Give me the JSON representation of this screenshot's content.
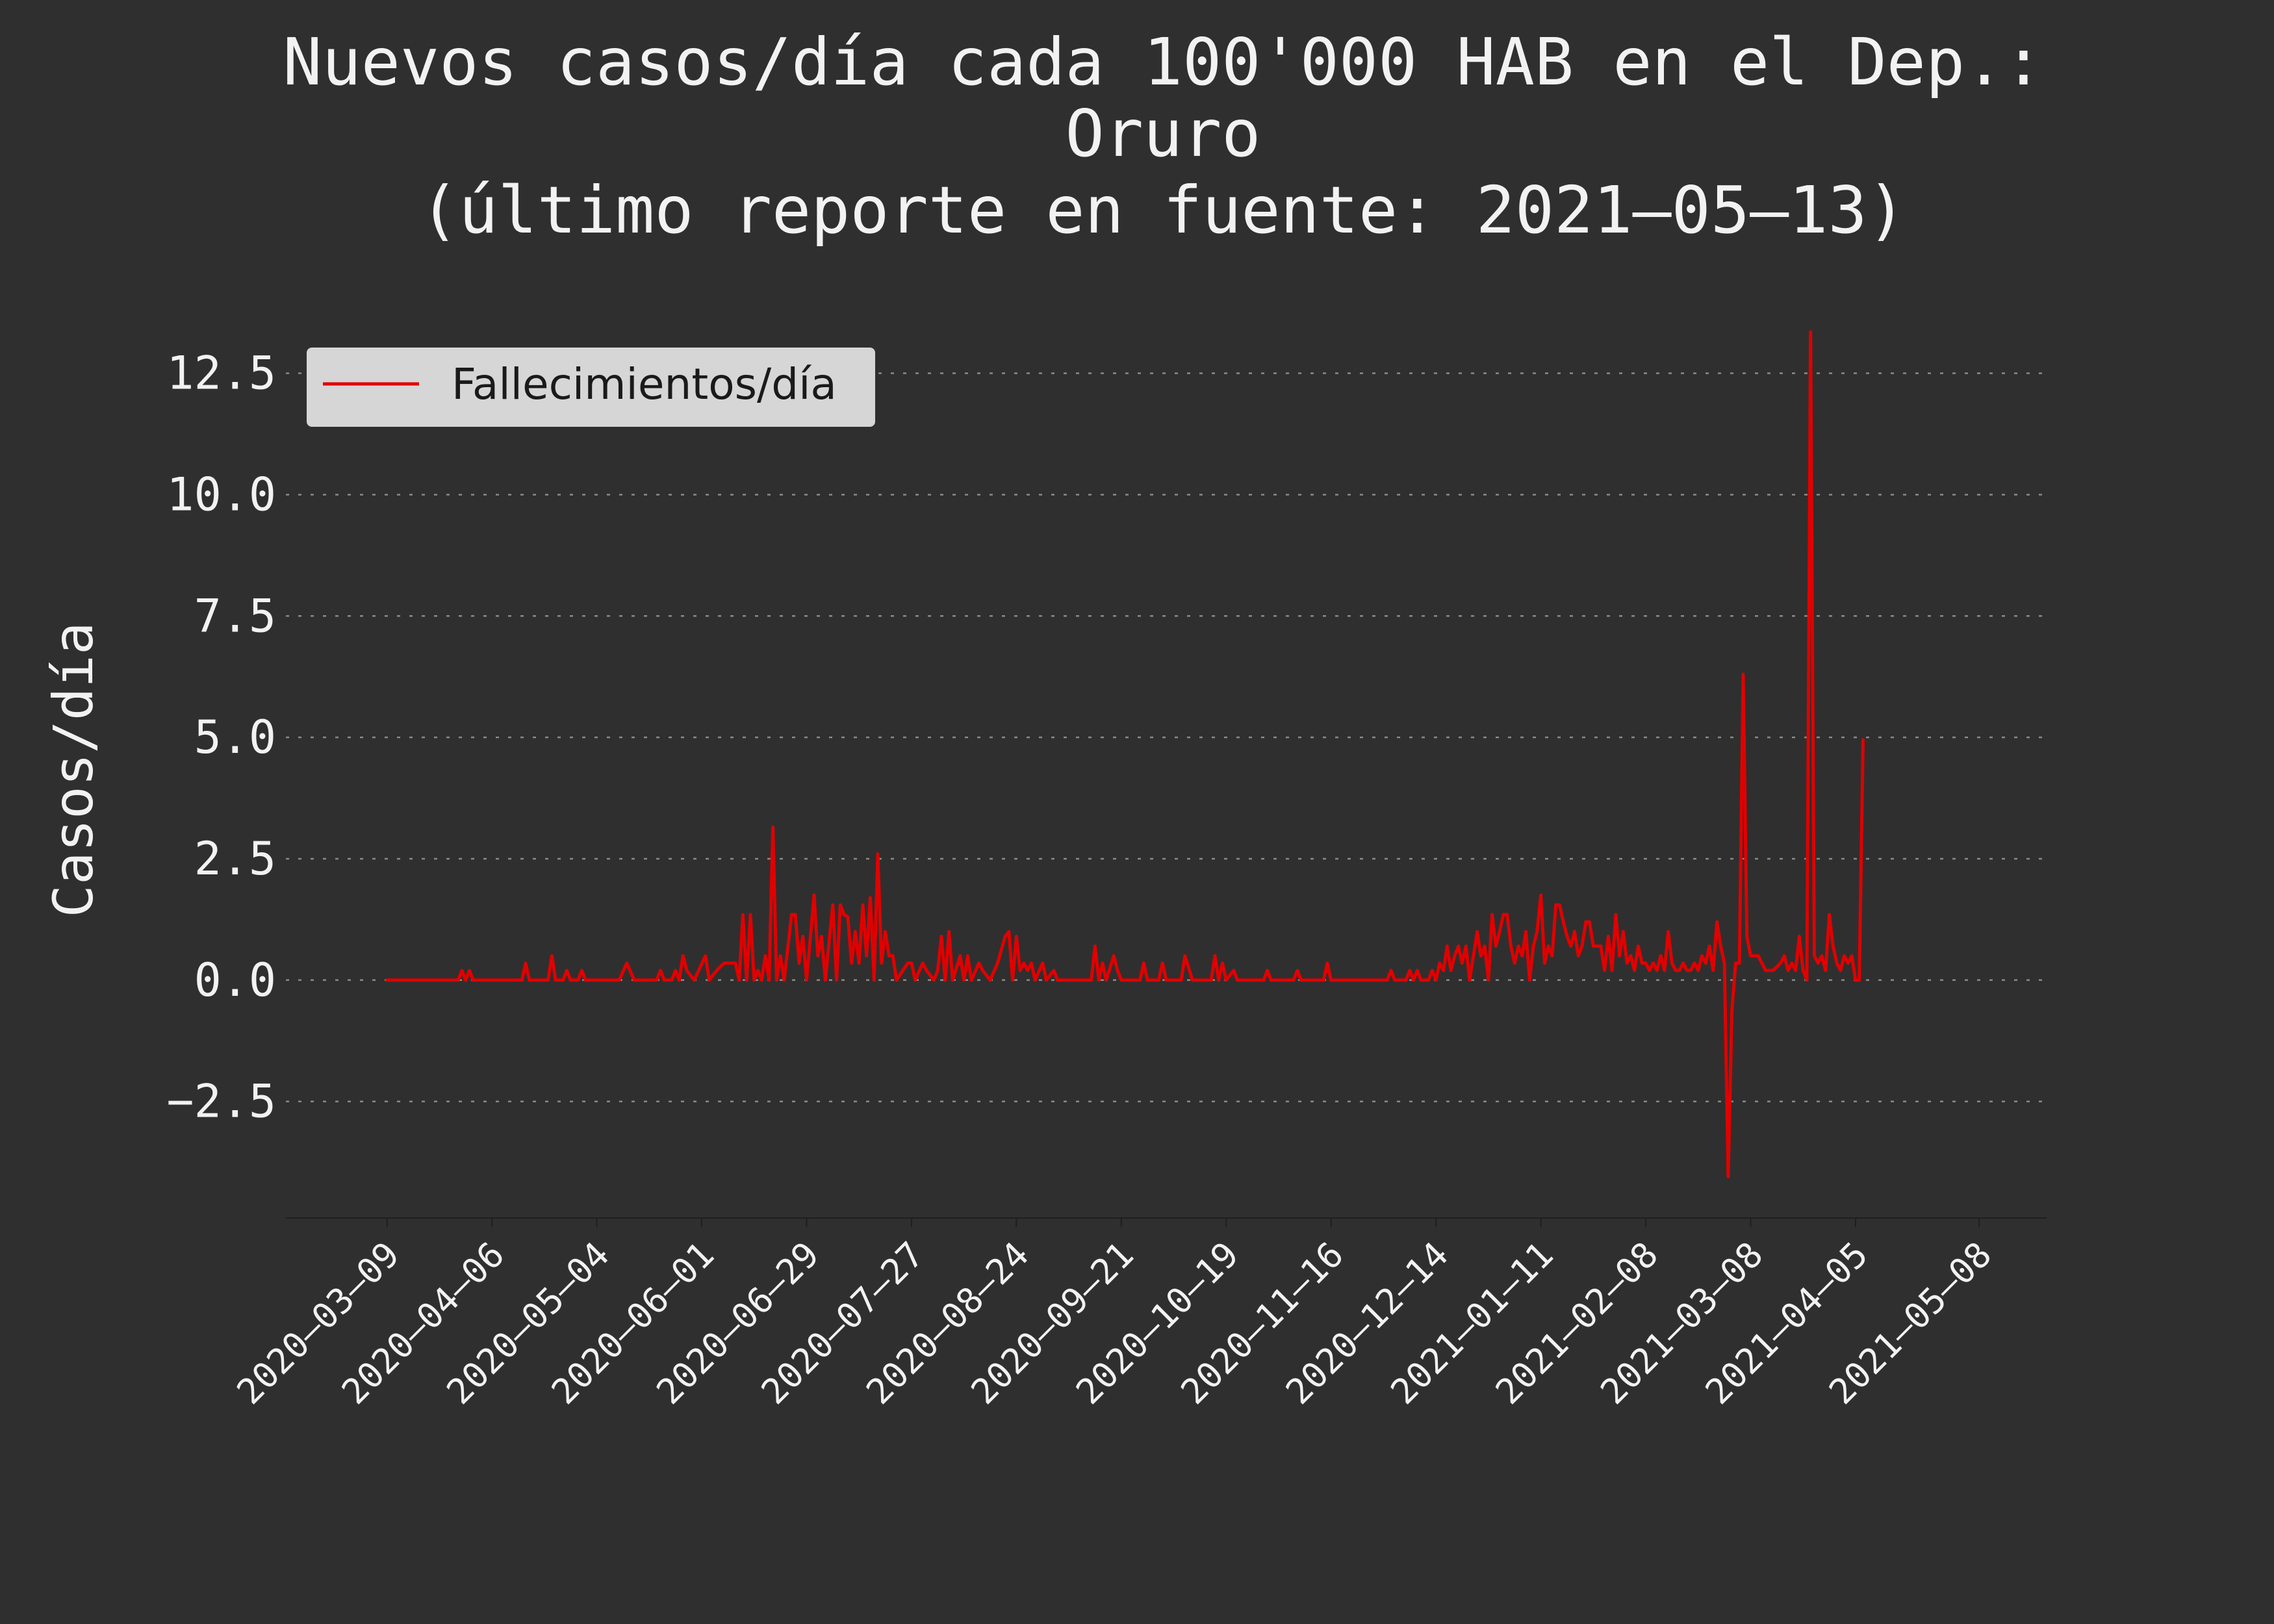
{
  "chart_data": {
    "type": "line",
    "title_lines": [
      "Nuevos casos/día cada 100'000 HAB en el Dep.:",
      "Oruro",
      "(último reporte en fuente: 2021–05–13)"
    ],
    "xlabel": "",
    "ylabel": "Casos/día",
    "ylim": [
      -4.9,
      13.9
    ],
    "yticks": [
      -2.5,
      0.0,
      2.5,
      5.0,
      7.5,
      10.0,
      12.5
    ],
    "ytick_labels": [
      "−2.5",
      "0.0",
      "2.5",
      "5.0",
      "7.5",
      "10.0",
      "12.5"
    ],
    "xlim": [
      "2020-02-11",
      "2021-05-26"
    ],
    "xticks": [
      "2020-03-09",
      "2020-04-06",
      "2020-05-04",
      "2020-06-01",
      "2020-06-29",
      "2020-07-27",
      "2020-08-24",
      "2020-09-21",
      "2020-10-19",
      "2020-11-16",
      "2020-12-14",
      "2021-01-11",
      "2021-02-08",
      "2021-03-08",
      "2021-04-05",
      "2021-05-08"
    ],
    "xtick_labels": [
      "2020–03–09",
      "2020–04–06",
      "2020–05–04",
      "2020–06–01",
      "2020–06–29",
      "2020–07–27",
      "2020–08–24",
      "2020–09–21",
      "2020–10–19",
      "2020–11–16",
      "2020–12–14",
      "2021–01–11",
      "2021–02–08",
      "2021–03–08",
      "2021–04–05",
      "2021–05–08"
    ],
    "grid": "horizontal dotted",
    "legend_position": "top-left",
    "line_color": "#e00000",
    "background_color": "#2f2f2f",
    "series": [
      {
        "name": "Fallecimientos/día",
        "points": [
          [
            "2020-03-09",
            0
          ],
          [
            "2020-03-28",
            0
          ],
          [
            "2020-03-29",
            0.2
          ],
          [
            "2020-03-30",
            0
          ],
          [
            "2020-03-31",
            0.2
          ],
          [
            "2020-04-01",
            0
          ],
          [
            "2020-04-14",
            0
          ],
          [
            "2020-04-15",
            0.35
          ],
          [
            "2020-04-16",
            0
          ],
          [
            "2020-04-21",
            0
          ],
          [
            "2020-04-22",
            0.5
          ],
          [
            "2020-04-23",
            0
          ],
          [
            "2020-04-25",
            0
          ],
          [
            "2020-04-26",
            0.2
          ],
          [
            "2020-04-27",
            0
          ],
          [
            "2020-04-29",
            0
          ],
          [
            "2020-04-30",
            0.2
          ],
          [
            "2020-05-01",
            0
          ],
          [
            "2020-05-10",
            0
          ],
          [
            "2020-05-12",
            0.35
          ],
          [
            "2020-05-14",
            0
          ],
          [
            "2020-05-20",
            0
          ],
          [
            "2020-05-21",
            0.2
          ],
          [
            "2020-05-22",
            0
          ],
          [
            "2020-05-24",
            0
          ],
          [
            "2020-05-25",
            0.2
          ],
          [
            "2020-05-26",
            0
          ],
          [
            "2020-05-27",
            0.5
          ],
          [
            "2020-05-28",
            0.2
          ],
          [
            "2020-05-30",
            0
          ],
          [
            "2020-06-02",
            0.5
          ],
          [
            "2020-06-03",
            0
          ],
          [
            "2020-06-05",
            0.2
          ],
          [
            "2020-06-07",
            0.35
          ],
          [
            "2020-06-08",
            0.35
          ],
          [
            "2020-06-10",
            0.35
          ],
          [
            "2020-06-11",
            0
          ],
          [
            "2020-06-12",
            1.35
          ],
          [
            "2020-06-13",
            0
          ],
          [
            "2020-06-14",
            1.35
          ],
          [
            "2020-06-15",
            0
          ],
          [
            "2020-06-16",
            0.2
          ],
          [
            "2020-06-17",
            0
          ],
          [
            "2020-06-18",
            0.5
          ],
          [
            "2020-06-19",
            0
          ],
          [
            "2020-06-20",
            3.15
          ],
          [
            "2020-06-21",
            0
          ],
          [
            "2020-06-22",
            0.5
          ],
          [
            "2020-06-23",
            0
          ],
          [
            "2020-06-25",
            1.35
          ],
          [
            "2020-06-26",
            1.35
          ],
          [
            "2020-06-27",
            0.35
          ],
          [
            "2020-06-28",
            0.9
          ],
          [
            "2020-06-29",
            0
          ],
          [
            "2020-07-01",
            1.75
          ],
          [
            "2020-07-02",
            0.5
          ],
          [
            "2020-07-03",
            0.9
          ],
          [
            "2020-07-04",
            0
          ],
          [
            "2020-07-06",
            1.55
          ],
          [
            "2020-07-07",
            0
          ],
          [
            "2020-07-08",
            1.55
          ],
          [
            "2020-07-09",
            1.35
          ],
          [
            "2020-07-10",
            1.3
          ],
          [
            "2020-07-11",
            0.35
          ],
          [
            "2020-07-12",
            1.0
          ],
          [
            "2020-07-13",
            0.35
          ],
          [
            "2020-07-14",
            1.55
          ],
          [
            "2020-07-15",
            0.5
          ],
          [
            "2020-07-16",
            1.7
          ],
          [
            "2020-07-17",
            0
          ],
          [
            "2020-07-18",
            2.6
          ],
          [
            "2020-07-19",
            0.35
          ],
          [
            "2020-07-20",
            1.0
          ],
          [
            "2020-07-21",
            0.5
          ],
          [
            "2020-07-22",
            0.5
          ],
          [
            "2020-07-23",
            0
          ],
          [
            "2020-07-26",
            0.35
          ],
          [
            "2020-07-27",
            0.35
          ],
          [
            "2020-07-28",
            0
          ],
          [
            "2020-07-30",
            0.35
          ],
          [
            "2020-07-31",
            0.2
          ],
          [
            "2020-08-02",
            0
          ],
          [
            "2020-08-03",
            0.2
          ],
          [
            "2020-08-04",
            0.9
          ],
          [
            "2020-08-05",
            0
          ],
          [
            "2020-08-06",
            1.0
          ],
          [
            "2020-08-07",
            0
          ],
          [
            "2020-08-09",
            0.5
          ],
          [
            "2020-08-10",
            0
          ],
          [
            "2020-08-11",
            0.5
          ],
          [
            "2020-08-12",
            0
          ],
          [
            "2020-08-14",
            0.35
          ],
          [
            "2020-08-15",
            0.2
          ],
          [
            "2020-08-17",
            0
          ],
          [
            "2020-08-19",
            0.35
          ],
          [
            "2020-08-21",
            0.9
          ],
          [
            "2020-08-22",
            1.0
          ],
          [
            "2020-08-23",
            0
          ],
          [
            "2020-08-24",
            0.9
          ],
          [
            "2020-08-25",
            0.2
          ],
          [
            "2020-08-26",
            0.35
          ],
          [
            "2020-08-27",
            0.2
          ],
          [
            "2020-08-28",
            0.35
          ],
          [
            "2020-08-29",
            0
          ],
          [
            "2020-08-31",
            0.35
          ],
          [
            "2020-09-01",
            0
          ],
          [
            "2020-09-03",
            0.2
          ],
          [
            "2020-09-04",
            0
          ],
          [
            "2020-09-13",
            0
          ],
          [
            "2020-09-14",
            0.7
          ],
          [
            "2020-09-15",
            0
          ],
          [
            "2020-09-16",
            0.35
          ],
          [
            "2020-09-17",
            0
          ],
          [
            "2020-09-19",
            0.5
          ],
          [
            "2020-09-20",
            0.2
          ],
          [
            "2020-09-21",
            0
          ],
          [
            "2020-09-26",
            0
          ],
          [
            "2020-09-27",
            0.35
          ],
          [
            "2020-09-28",
            0
          ],
          [
            "2020-10-01",
            0
          ],
          [
            "2020-10-02",
            0.35
          ],
          [
            "2020-10-03",
            0
          ],
          [
            "2020-10-07",
            0
          ],
          [
            "2020-10-08",
            0.5
          ],
          [
            "2020-10-10",
            0
          ],
          [
            "2020-10-15",
            0
          ],
          [
            "2020-10-16",
            0.5
          ],
          [
            "2020-10-17",
            0
          ],
          [
            "2020-10-18",
            0.35
          ],
          [
            "2020-10-19",
            0
          ],
          [
            "2020-10-21",
            0.2
          ],
          [
            "2020-10-22",
            0
          ],
          [
            "2020-10-29",
            0
          ],
          [
            "2020-10-30",
            0.2
          ],
          [
            "2020-10-31",
            0
          ],
          [
            "2020-11-06",
            0
          ],
          [
            "2020-11-07",
            0.2
          ],
          [
            "2020-11-08",
            0
          ],
          [
            "2020-11-14",
            0
          ],
          [
            "2020-11-15",
            0.35
          ],
          [
            "2020-11-16",
            0
          ],
          [
            "2020-12-01",
            0
          ],
          [
            "2020-12-02",
            0.2
          ],
          [
            "2020-12-03",
            0
          ],
          [
            "2020-12-06",
            0
          ],
          [
            "2020-12-07",
            0.2
          ],
          [
            "2020-12-08",
            0
          ],
          [
            "2020-12-09",
            0.2
          ],
          [
            "2020-12-10",
            0
          ],
          [
            "2020-12-12",
            0
          ],
          [
            "2020-12-13",
            0.2
          ],
          [
            "2020-12-14",
            0
          ],
          [
            "2020-12-15",
            0.35
          ],
          [
            "2020-12-16",
            0.2
          ],
          [
            "2020-12-17",
            0.7
          ],
          [
            "2020-12-18",
            0.2
          ],
          [
            "2020-12-19",
            0.5
          ],
          [
            "2020-12-20",
            0.7
          ],
          [
            "2020-12-21",
            0.35
          ],
          [
            "2020-12-22",
            0.7
          ],
          [
            "2020-12-23",
            0
          ],
          [
            "2020-12-24",
            0.5
          ],
          [
            "2020-12-25",
            1.0
          ],
          [
            "2020-12-26",
            0.5
          ],
          [
            "2020-12-27",
            0.7
          ],
          [
            "2020-12-28",
            0
          ],
          [
            "2020-12-29",
            1.35
          ],
          [
            "2020-12-30",
            0.7
          ],
          [
            "2020-12-31",
            1.0
          ],
          [
            "2021-01-01",
            1.35
          ],
          [
            "2021-01-02",
            1.35
          ],
          [
            "2021-01-03",
            0.7
          ],
          [
            "2021-01-04",
            0.35
          ],
          [
            "2021-01-05",
            0.7
          ],
          [
            "2021-01-06",
            0.5
          ],
          [
            "2021-01-07",
            1.0
          ],
          [
            "2021-01-08",
            0
          ],
          [
            "2021-01-09",
            0.7
          ],
          [
            "2021-01-10",
            1.0
          ],
          [
            "2021-01-11",
            1.75
          ],
          [
            "2021-01-12",
            0.35
          ],
          [
            "2021-01-13",
            0.7
          ],
          [
            "2021-01-14",
            0.5
          ],
          [
            "2021-01-15",
            1.55
          ],
          [
            "2021-01-16",
            1.55
          ],
          [
            "2021-01-17",
            1.2
          ],
          [
            "2021-01-18",
            0.9
          ],
          [
            "2021-01-19",
            0.7
          ],
          [
            "2021-01-20",
            1.0
          ],
          [
            "2021-01-21",
            0.5
          ],
          [
            "2021-01-22",
            0.7
          ],
          [
            "2021-01-23",
            1.2
          ],
          [
            "2021-01-24",
            1.2
          ],
          [
            "2021-01-25",
            0.7
          ],
          [
            "2021-01-26",
            0.7
          ],
          [
            "2021-01-27",
            0.7
          ],
          [
            "2021-01-28",
            0.2
          ],
          [
            "2021-01-29",
            0.9
          ],
          [
            "2021-01-30",
            0.2
          ],
          [
            "2021-01-31",
            1.35
          ],
          [
            "2021-02-01",
            0.5
          ],
          [
            "2021-02-02",
            1.0
          ],
          [
            "2021-02-03",
            0.35
          ],
          [
            "2021-02-04",
            0.5
          ],
          [
            "2021-02-05",
            0.2
          ],
          [
            "2021-02-06",
            0.7
          ],
          [
            "2021-02-07",
            0.35
          ],
          [
            "2021-02-08",
            0.35
          ],
          [
            "2021-02-09",
            0.2
          ],
          [
            "2021-02-10",
            0.35
          ],
          [
            "2021-02-11",
            0.2
          ],
          [
            "2021-02-12",
            0.5
          ],
          [
            "2021-02-13",
            0.2
          ],
          [
            "2021-02-14",
            1.0
          ],
          [
            "2021-02-15",
            0.35
          ],
          [
            "2021-02-16",
            0.2
          ],
          [
            "2021-02-17",
            0.2
          ],
          [
            "2021-02-18",
            0.35
          ],
          [
            "2021-02-19",
            0.2
          ],
          [
            "2021-02-20",
            0.2
          ],
          [
            "2021-02-21",
            0.35
          ],
          [
            "2021-02-22",
            0.2
          ],
          [
            "2021-02-23",
            0.5
          ],
          [
            "2021-02-24",
            0.35
          ],
          [
            "2021-02-25",
            0.7
          ],
          [
            "2021-02-26",
            0.2
          ],
          [
            "2021-02-27",
            1.2
          ],
          [
            "2021-02-28",
            0.7
          ],
          [
            "2021-03-01",
            0.35
          ],
          [
            "2021-03-02",
            -4.05
          ],
          [
            "2021-03-03",
            -0.6
          ],
          [
            "2021-03-04",
            0.35
          ],
          [
            "2021-03-05",
            0.35
          ],
          [
            "2021-03-06",
            6.3
          ],
          [
            "2021-03-07",
            0.9
          ],
          [
            "2021-03-08",
            0.5
          ],
          [
            "2021-03-09",
            0.5
          ],
          [
            "2021-03-10",
            0.5
          ],
          [
            "2021-03-11",
            0.35
          ],
          [
            "2021-03-12",
            0.2
          ],
          [
            "2021-03-13",
            0.2
          ],
          [
            "2021-03-14",
            0.2
          ],
          [
            "2021-03-16",
            0.35
          ],
          [
            "2021-03-17",
            0.5
          ],
          [
            "2021-03-18",
            0.2
          ],
          [
            "2021-03-19",
            0.35
          ],
          [
            "2021-03-20",
            0.2
          ],
          [
            "2021-03-21",
            0.9
          ],
          [
            "2021-03-22",
            0.2
          ],
          [
            "2021-03-23",
            0
          ],
          [
            "2021-03-24",
            13.35
          ],
          [
            "2021-03-25",
            0.5
          ],
          [
            "2021-03-26",
            0.35
          ],
          [
            "2021-03-27",
            0.5
          ],
          [
            "2021-03-28",
            0.2
          ],
          [
            "2021-03-29",
            1.35
          ],
          [
            "2021-03-30",
            0.7
          ],
          [
            "2021-03-31",
            0.35
          ],
          [
            "2021-04-01",
            0.2
          ],
          [
            "2021-04-02",
            0.5
          ],
          [
            "2021-04-03",
            0.35
          ],
          [
            "2021-04-04",
            0.5
          ],
          [
            "2021-04-05",
            0
          ],
          [
            "2021-04-06",
            0
          ],
          [
            "2021-04-07",
            4.95
          ]
        ]
      }
    ]
  },
  "legend": {
    "label": "Fallecimientos/día"
  }
}
